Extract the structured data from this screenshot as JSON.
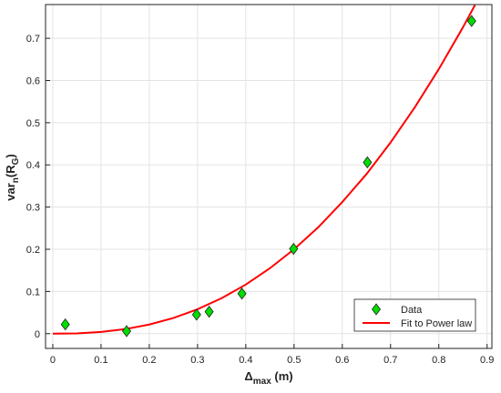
{
  "chart_data": {
    "type": "scatter",
    "x_label": [
      {
        "text": "Δ"
      },
      {
        "sub": "max"
      },
      {
        "text": " (m)"
      }
    ],
    "y_label": [
      {
        "text": "var"
      },
      {
        "sub": "n"
      },
      {
        "text": "(R"
      },
      {
        "sub": "G"
      },
      {
        "text": ")"
      }
    ],
    "xlim": [
      -0.015,
      0.91
    ],
    "ylim": [
      -0.035,
      0.78
    ],
    "xticks": [
      0,
      0.1,
      0.2,
      0.3,
      0.4,
      0.5,
      0.6,
      0.7,
      0.8,
      0.9
    ],
    "yticks": [
      0,
      0.1,
      0.2,
      0.3,
      0.4,
      0.5,
      0.6,
      0.7
    ],
    "grid": true,
    "legend": "lower right",
    "series": [
      {
        "name": "Data",
        "color": "#00dd00",
        "marker": "diamond",
        "x": [
          0.026,
          0.153,
          0.298,
          0.324,
          0.392,
          0.499,
          0.652,
          0.868
        ],
        "values": [
          0.022,
          0.006,
          0.045,
          0.052,
          0.095,
          0.201,
          0.406,
          0.741
        ]
      },
      {
        "name": "Fit to Power law",
        "color": "#ff0000",
        "marker": "line",
        "x": [
          0,
          0.05,
          0.1,
          0.15,
          0.2,
          0.25,
          0.3,
          0.35,
          0.4,
          0.45,
          0.5,
          0.55,
          0.6,
          0.65,
          0.7,
          0.75,
          0.8,
          0.85,
          0.875
        ],
        "values": [
          0,
          0.0007,
          0.004,
          0.0107,
          0.0216,
          0.0371,
          0.0578,
          0.0841,
          0.1163,
          0.155,
          0.2,
          0.252,
          0.312,
          0.378,
          0.453,
          0.536,
          0.627,
          0.726,
          0.779
        ]
      }
    ]
  }
}
